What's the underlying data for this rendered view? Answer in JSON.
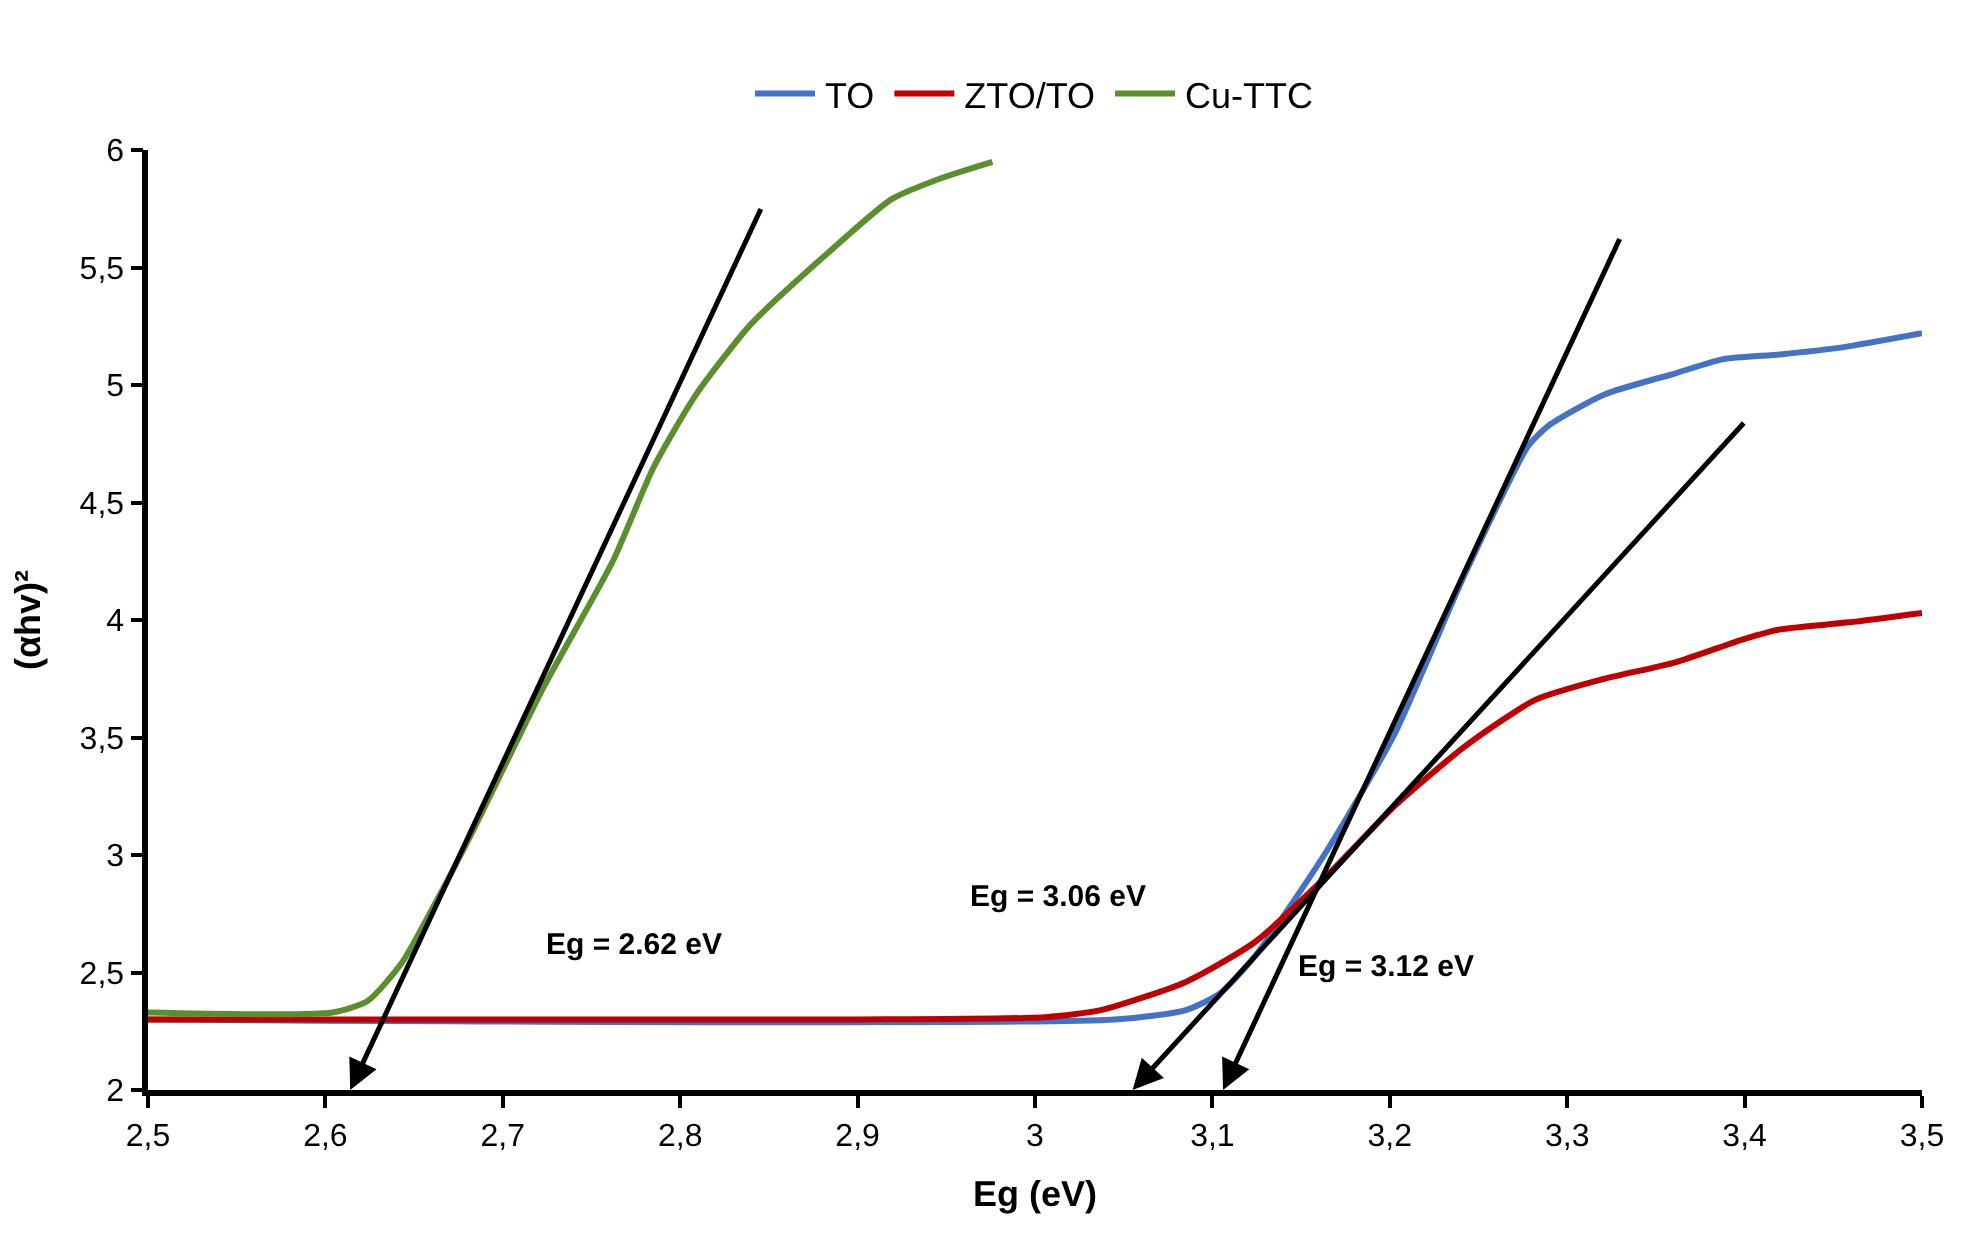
{
  "chart_data": {
    "type": "line",
    "xlabel": "Eg (eV)",
    "ylabel": "(αhv)²",
    "legend": "top",
    "marker": "none",
    "line_style": "solid",
    "xlim": [
      2.5,
      3.5
    ],
    "ylim": [
      2,
      6
    ],
    "xticks": [
      {
        "value": 2.5,
        "label": "2,5"
      },
      {
        "value": 2.6,
        "label": "2,6"
      },
      {
        "value": 2.7,
        "label": "2,7"
      },
      {
        "value": 2.8,
        "label": "2,8"
      },
      {
        "value": 2.9,
        "label": "2,9"
      },
      3,
      {
        "value": 3.1,
        "label": "3,1"
      },
      {
        "value": 3.2,
        "label": "3,2"
      },
      {
        "value": 3.3,
        "label": "3,3"
      },
      {
        "value": 3.4,
        "label": "3,4"
      },
      {
        "value": 3.5,
        "label": "3,5"
      }
    ],
    "yticks": [
      2,
      {
        "value": 2.5,
        "label": "2,5"
      },
      3,
      {
        "value": 3.5,
        "label": "3,5"
      },
      4,
      {
        "value": 4.5,
        "label": "4,5"
      },
      5,
      {
        "value": 5.5,
        "label": "5,5"
      },
      6
    ],
    "series": [
      {
        "name": "TO",
        "color": "#4472c4",
        "x": [
          2.5,
          3.045,
          3.085,
          3.104,
          3.124,
          3.163,
          3.203,
          3.242,
          3.278,
          3.29,
          3.321,
          3.361,
          3.388,
          3.42,
          3.455,
          3.5
        ],
        "values": [
          2.3,
          2.3,
          2.34,
          2.41,
          2.57,
          3.0,
          3.52,
          4.19,
          4.74,
          4.83,
          4.96,
          5.05,
          5.11,
          5.13,
          5.16,
          5.22
        ]
      },
      {
        "name": "ZTO/TO",
        "color": "#c00000",
        "x": [
          2.5,
          2.9,
          3.006,
          3.037,
          3.085,
          3.124,
          3.163,
          3.203,
          3.242,
          3.282,
          3.321,
          3.361,
          3.4,
          3.42,
          3.459,
          3.5
        ],
        "values": [
          2.3,
          2.3,
          2.31,
          2.34,
          2.46,
          2.63,
          2.9,
          3.21,
          3.46,
          3.66,
          3.75,
          3.82,
          3.92,
          3.96,
          3.99,
          4.03
        ]
      },
      {
        "name": "Cu-TTC",
        "color": "#5b8f2e",
        "x": [
          2.5,
          2.604,
          2.624,
          2.643,
          2.663,
          2.683,
          2.722,
          2.762,
          2.785,
          2.809,
          2.84,
          2.88,
          2.919,
          2.947,
          2.976
        ],
        "values": [
          2.33,
          2.33,
          2.38,
          2.54,
          2.81,
          3.1,
          3.7,
          4.25,
          4.65,
          4.96,
          5.26,
          5.54,
          5.79,
          5.88,
          5.95
        ]
      }
    ],
    "annotations": [
      "Eg = 2.62 eV",
      "Eg = 3.06 eV",
      "Eg = 3.12 eV"
    ]
  }
}
